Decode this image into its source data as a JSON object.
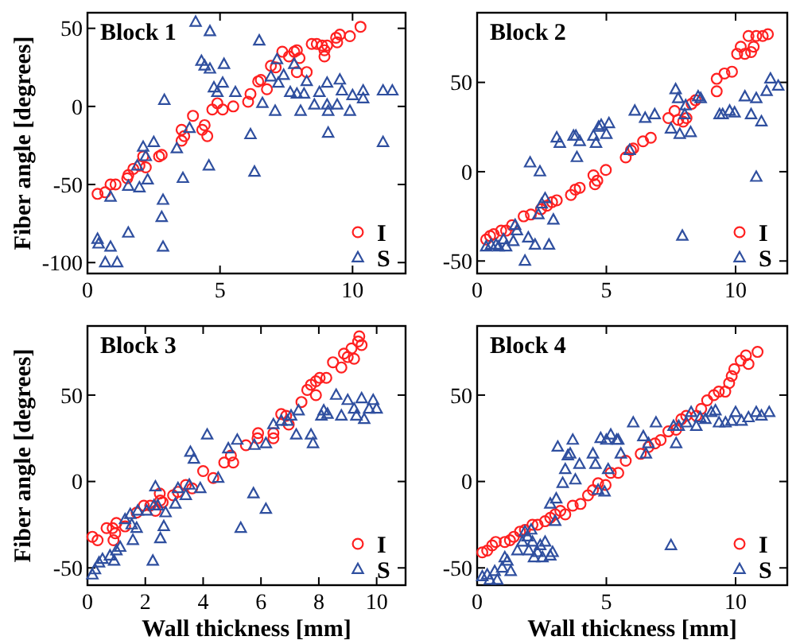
{
  "chart_data": [
    {
      "type": "scatter",
      "title": "Block 1",
      "ylabel": "Fiber angle [degrees]",
      "xlim": [
        0,
        12
      ],
      "ylim": [
        -107,
        60
      ],
      "xticks": [
        0,
        5,
        10
      ],
      "yticks": [
        -100,
        -50,
        0,
        50
      ],
      "legend": "bottom right",
      "series": [
        {
          "name": "I",
          "color": "#ff2020",
          "marker": "circle",
          "x": [
            0.38,
            0.67,
            0.87,
            1.06,
            1.5,
            1.54,
            1.73,
            1.96,
            2.1,
            2.2,
            2.7,
            2.8,
            3.55,
            3.55,
            3.65,
            3.98,
            4.33,
            4.42,
            4.52,
            4.71,
            4.9,
            5.1,
            5.5,
            6.06,
            6.15,
            6.44,
            6.54,
            6.77,
            6.92,
            7.1,
            7.35,
            7.6,
            7.8,
            7.9,
            7.9,
            8,
            8.27,
            8.46,
            8.65,
            8.85,
            8.94,
            8.94,
            9.04,
            9.38,
            9.42,
            9.52,
            9.9,
            10.3
          ],
          "values": [
            -56,
            -55,
            -50,
            -50,
            -46,
            -44,
            -40,
            -38,
            -32,
            -39,
            -32,
            -31,
            -15,
            -22,
            -19,
            -6,
            -15,
            -12,
            -19,
            -2,
            2,
            -2,
            0,
            3,
            8,
            16,
            17,
            11,
            26,
            25,
            35,
            32,
            35,
            36,
            22,
            31,
            22,
            40,
            40,
            39,
            36,
            32,
            39,
            44,
            41,
            46,
            45,
            51
          ]
        },
        {
          "name": "S",
          "color": "#2f4f9f",
          "marker": "triangle",
          "x": [
            0.38,
            0.42,
            0.67,
            0.87,
            0.87,
            1.12,
            1.54,
            1.54,
            1.88,
            1.96,
            2.1,
            2.2,
            2.27,
            2.5,
            2.8,
            2.85,
            2.85,
            2.9,
            3.37,
            3.6,
            3.85,
            4.08,
            4.3,
            4.42,
            4.58,
            4.62,
            4.62,
            4.77,
            4.9,
            5.1,
            5.15,
            5.58,
            6.15,
            6.3,
            6.48,
            6.6,
            6.92,
            7.08,
            7.15,
            7.2,
            7.4,
            7.65,
            7.8,
            7.9,
            8.04,
            8.17,
            8.27,
            8.56,
            8.75,
            9.04,
            9.04,
            9.08,
            9.08,
            9.42,
            9.52,
            9.6,
            9.9,
            10,
            10.4,
            10.4,
            11.15,
            11.15,
            11.5
          ],
          "values": [
            -85,
            -88,
            -100,
            -90,
            -58,
            -100,
            -81,
            -51,
            -38,
            -52,
            -26,
            -32,
            -47,
            -23,
            -71,
            -60,
            -90,
            4,
            -27,
            -46,
            -14,
            54,
            29,
            26,
            -38,
            48,
            24,
            12,
            9,
            15,
            27,
            9,
            -18,
            -42,
            42,
            2,
            19,
            -3,
            30,
            15,
            20,
            9,
            27,
            8,
            -3,
            8,
            16,
            1,
            9,
            15,
            1,
            -3,
            -17,
            1,
            17,
            10,
            -3,
            7,
            10,
            5,
            10,
            -23,
            10
          ]
        }
      ]
    },
    {
      "type": "scatter",
      "title": "Block 2",
      "xlim": [
        0,
        12
      ],
      "ylim": [
        -57,
        89
      ],
      "xticks": [
        0,
        5,
        10
      ],
      "yticks": [
        -50,
        0,
        50
      ],
      "legend": "bottom right",
      "series": [
        {
          "name": "I",
          "color": "#ff2020",
          "marker": "circle",
          "x": [
            0.35,
            0.5,
            0.64,
            0.93,
            1.12,
            1.35,
            1.8,
            2.08,
            2.47,
            2.7,
            2.9,
            3.08,
            3.63,
            3.8,
            3.97,
            4.5,
            4.56,
            4.65,
            4.98,
            5.75,
            5.95,
            6.04,
            6.42,
            6.72,
            7.4,
            7.64,
            7.78,
            7.97,
            8.1,
            8.3,
            8.45,
            9.27,
            9.27,
            9.57,
            9.86,
            10.06,
            10.2,
            10.36,
            10.5,
            10.6,
            10.7,
            10.8,
            11.05,
            11.25
          ],
          "values": [
            -38,
            -36,
            -35,
            -33,
            -33,
            -30,
            -25,
            -24,
            -21,
            -19,
            -17,
            -16,
            -13,
            -10,
            -9,
            -2,
            -7,
            -5,
            1,
            8,
            12,
            13,
            17,
            19,
            30,
            34,
            29,
            28,
            30,
            38,
            40,
            45,
            52,
            55,
            56,
            66,
            70,
            66,
            76,
            67,
            70,
            76,
            76,
            77
          ]
        },
        {
          "name": "S",
          "color": "#2f4f9f",
          "marker": "triangle",
          "x": [
            0.35,
            0.54,
            0.73,
            0.83,
            1.02,
            1.12,
            1.4,
            1.47,
            1.54,
            1.85,
            1.98,
            2.05,
            2.24,
            2.37,
            2.43,
            2.5,
            2.63,
            2.78,
            2.95,
            3.08,
            3.2,
            3.73,
            3.82,
            3.86,
            3.97,
            4.5,
            4.6,
            4.7,
            4.8,
            5,
            5.1,
            5.9,
            6.1,
            6.5,
            6.87,
            7.5,
            7.68,
            7.78,
            7.84,
            7.94,
            8.03,
            8.07,
            8.26,
            8.55,
            8.65,
            9.38,
            9.5,
            9.77,
            9.96,
            10.36,
            10.6,
            10.8,
            10.8,
            11,
            11.2,
            11.35,
            11.65
          ],
          "values": [
            -42,
            -41,
            -41,
            -42,
            -38,
            -42,
            -39,
            -30,
            -33,
            -50,
            -37,
            5,
            -41,
            -24,
            0,
            -18,
            -15,
            -41,
            -27,
            19,
            16,
            20,
            20,
            8,
            17,
            20,
            16,
            25,
            26,
            21,
            27,
            12,
            34,
            30,
            32,
            24,
            46,
            41,
            21,
            -36,
            32,
            37,
            22,
            42,
            41,
            32,
            32,
            34,
            33,
            42,
            32,
            -3,
            41,
            28,
            45,
            52,
            48
          ]
        }
      ]
    },
    {
      "type": "scatter",
      "title": "Block 3",
      "xlabel": "Wall thickness [mm]",
      "ylabel": "Fiber angle [degrees]",
      "xlim": [
        0,
        11
      ],
      "ylim": [
        -60,
        90
      ],
      "xticks": [
        0,
        2,
        4,
        6,
        8,
        10
      ],
      "yticks": [
        -50,
        0,
        50
      ],
      "legend": "bottom right",
      "series": [
        {
          "name": "I",
          "color": "#ff2020",
          "marker": "circle",
          "x": [
            0.17,
            0.35,
            0.66,
            0.87,
            0.9,
            0.96,
            1,
            1.3,
            1.7,
            1.95,
            2.17,
            2.35,
            2.5,
            2.52,
            2.6,
            2.96,
            3.13,
            3.4,
            3.62,
            4,
            4.35,
            4.73,
            4.96,
            5.04,
            5.48,
            5.88,
            5.9,
            6.43,
            6.43,
            6.7,
            6.87,
            6.96,
            7.4,
            7.6,
            7.73,
            7.9,
            7.9,
            8.03,
            8.26,
            8.49,
            8.78,
            8.87,
            9,
            9.13,
            9.22,
            9.36,
            9.4,
            9.48
          ],
          "values": [
            -32,
            -34,
            -27,
            -27,
            -34,
            -30,
            -24,
            -26,
            -18,
            -14,
            -14,
            -17,
            -7,
            -11,
            -12,
            -8,
            -6,
            -2,
            -4,
            6,
            2,
            11,
            15,
            11,
            21,
            25,
            28,
            28,
            25,
            39,
            38,
            33,
            46,
            53,
            56,
            58,
            50,
            60,
            60,
            69,
            66,
            74,
            72,
            77,
            71,
            81,
            84,
            79
          ]
        },
        {
          "name": "S",
          "color": "#2f4f9f",
          "marker": "triangle",
          "x": [
            0.17,
            0.26,
            0.4,
            0.52,
            0.78,
            0.92,
            1,
            1.13,
            1.3,
            1.48,
            1.53,
            1.57,
            1.7,
            1.74,
            2.05,
            2.26,
            2.3,
            2.35,
            2.43,
            2.52,
            2.64,
            2.7,
            3.04,
            3.13,
            3.4,
            3.52,
            3.56,
            3.68,
            3.9,
            4.14,
            4.52,
            4.87,
            5.18,
            5.3,
            5.74,
            5.77,
            6.17,
            6.17,
            6.43,
            6.7,
            6.92,
            7.04,
            7.22,
            7.3,
            7.73,
            7.8,
            8.09,
            8.17,
            8.3,
            8.6,
            8.78,
            9,
            9.22,
            9.3,
            9.48,
            9.57,
            9.74,
            9.88,
            10
          ],
          "values": [
            -54,
            -51,
            -47,
            -45,
            -43,
            -46,
            -40,
            -38,
            -22,
            -19,
            -25,
            -34,
            -27,
            -17,
            -17,
            -46,
            -14,
            -3,
            -14,
            -33,
            -26,
            -18,
            -13,
            -4,
            -8,
            -2,
            17,
            13,
            -4,
            27,
            2,
            19,
            24,
            -27,
            -7,
            21,
            -16,
            22,
            33,
            35,
            35,
            38,
            27,
            41,
            27,
            22,
            38,
            41,
            39,
            50,
            38,
            47,
            42,
            38,
            48,
            36,
            42,
            47,
            42
          ]
        }
      ]
    },
    {
      "type": "scatter",
      "title": "Block 4",
      "xlabel": "Wall thickness [mm]",
      "xlim": [
        0,
        12
      ],
      "ylim": [
        -60,
        90
      ],
      "xticks": [
        0,
        5,
        10
      ],
      "yticks": [
        -50,
        0,
        50
      ],
      "legend": "bottom right",
      "series": [
        {
          "name": "I",
          "color": "#ff2020",
          "marker": "circle",
          "x": [
            0.2,
            0.39,
            0.58,
            0.72,
            1.07,
            1.27,
            1.42,
            1.66,
            1.85,
            2.14,
            2.34,
            2.63,
            2.83,
            3.02,
            3.22,
            3.41,
            3.7,
            4,
            4.29,
            4.48,
            4.68,
            4.97,
            5.17,
            5.46,
            5.75,
            6.33,
            6.63,
            6.88,
            7.1,
            7.4,
            7.7,
            7.9,
            8.09,
            8.48,
            8.67,
            8.9,
            9.16,
            9.35,
            9.6,
            9.75,
            9.85,
            9.95,
            10.2,
            10.4,
            10.5,
            10.85
          ],
          "values": [
            -41,
            -40,
            -37,
            -35,
            -35,
            -34,
            -32,
            -29,
            -28,
            -25,
            -25,
            -23,
            -21,
            -19,
            -17,
            -19,
            -14,
            -13,
            -8,
            -5,
            -1,
            -2,
            5,
            5,
            12,
            16,
            20,
            22,
            24,
            29,
            30,
            36,
            38,
            38,
            42,
            47,
            50,
            52,
            52,
            57,
            61,
            65,
            70,
            73,
            68,
            75
          ]
        },
        {
          "name": "S",
          "color": "#2f4f9f",
          "marker": "triangle",
          "x": [
            0.2,
            0.39,
            0.49,
            0.68,
            0.78,
            0.97,
            1.07,
            1.17,
            1.3,
            1.56,
            1.75,
            1.85,
            1.95,
            2,
            2.09,
            2.14,
            2.2,
            2.34,
            2.44,
            2.53,
            2.63,
            2.83,
            2.83,
            2.92,
            3.02,
            3.06,
            3.12,
            3.31,
            3.41,
            3.51,
            3.6,
            3.7,
            3.8,
            3.96,
            4.48,
            4.58,
            4.68,
            4.78,
            4.93,
            5,
            5.07,
            5.17,
            5.4,
            5.46,
            5.56,
            6.04,
            6.43,
            6.53,
            6.63,
            6.92,
            7.5,
            7.6,
            7.7,
            7.8,
            8.09,
            8.28,
            8.48,
            8.63,
            8.83,
            9.06,
            9.22,
            9.36,
            9.61,
            9.84,
            10,
            10.23,
            10.5,
            10.8,
            11,
            11.3
          ],
          "values": [
            -55,
            -54,
            -57,
            -52,
            -57,
            -50,
            -44,
            -46,
            -52,
            -40,
            -35,
            -29,
            -32,
            -40,
            -28,
            -35,
            -44,
            -41,
            -37,
            -44,
            -35,
            -43,
            -13,
            -41,
            -23,
            -10,
            20,
            -1,
            7,
            15,
            16,
            24,
            1,
            10,
            16,
            10,
            -5,
            25,
            -6,
            24,
            7,
            27,
            24,
            24,
            16,
            34,
            26,
            16,
            22,
            34,
            -37,
            32,
            22,
            32,
            34,
            40,
            32,
            37,
            36,
            40,
            41,
            34,
            34,
            35,
            40,
            35,
            37,
            40,
            38,
            40
          ]
        }
      ]
    }
  ]
}
